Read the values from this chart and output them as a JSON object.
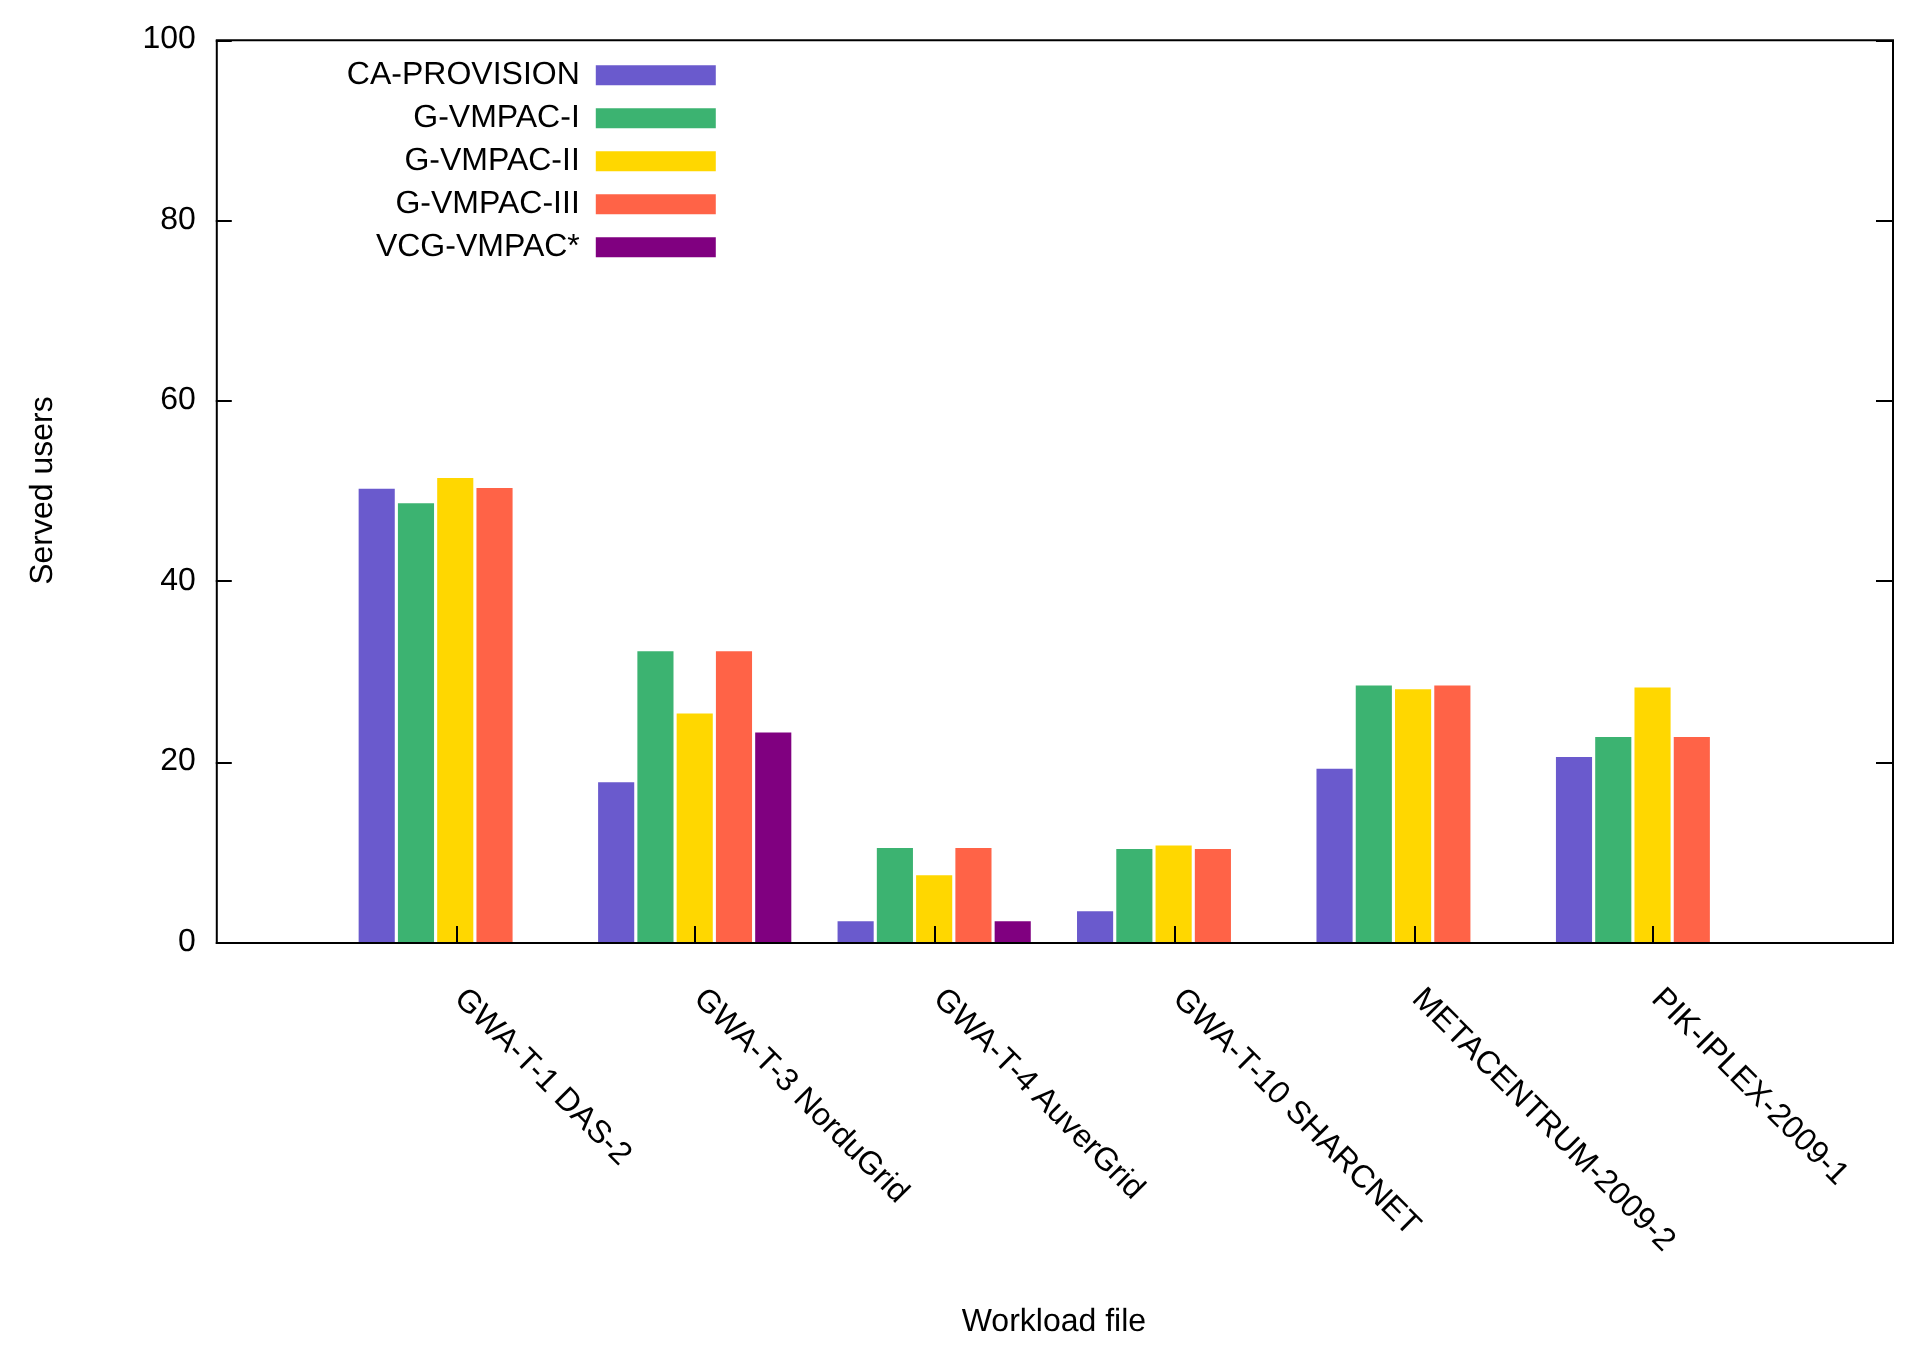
{
  "chart_data": {
    "type": "bar",
    "xlabel": "Workload file",
    "ylabel": "Served users",
    "categories": [
      "GWA-T-1 DAS-2",
      "GWA-T-3 NorduGrid",
      "GWA-T-4 AuverGrid",
      "GWA-T-10 SHARCNET",
      "METACENTRUM-2009-2",
      "PIK-IPLEX-2009-1"
    ],
    "series": [
      {
        "name": "CA-PROVISION",
        "color": "#6a5acd",
        "values": [
          50.2,
          17.7,
          2.3,
          3.4,
          19.2,
          20.5
        ]
      },
      {
        "name": "G-VMPAC-I",
        "color": "#3cb371",
        "values": [
          48.6,
          32.2,
          10.4,
          10.3,
          28.4,
          22.7
        ]
      },
      {
        "name": "G-VMPAC-II",
        "color": "#ffd700",
        "values": [
          51.4,
          25.3,
          7.4,
          10.7,
          28.0,
          28.2
        ]
      },
      {
        "name": "G-VMPAC-III",
        "color": "#ff6347",
        "values": [
          50.3,
          32.2,
          10.4,
          10.3,
          28.4,
          22.7
        ]
      },
      {
        "name": "VCG-VMPAC*",
        "color": "#800080",
        "values": [
          null,
          23.2,
          2.3,
          null,
          null,
          null
        ]
      }
    ],
    "ylim": [
      0,
      100
    ],
    "yticks": [
      0,
      20,
      40,
      60,
      80,
      100
    ],
    "grid": false,
    "legend": "top left"
  }
}
